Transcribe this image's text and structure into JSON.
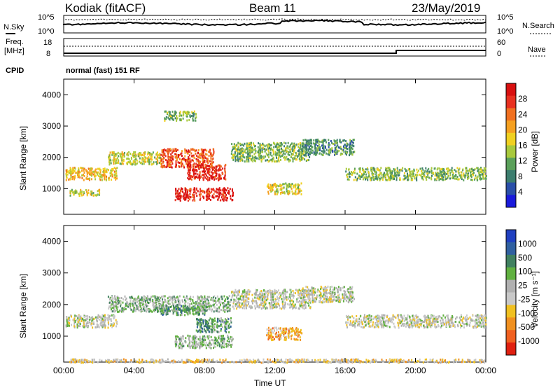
{
  "header": {
    "station": "Kodiak (fitACF)",
    "beam": "Beam 11",
    "date": "23/May/2019"
  },
  "top_panels": {
    "nsky_label": "N.Sky",
    "nsearch_label": "N.Search",
    "nsky_ticks": [
      "10^5",
      "10^0"
    ],
    "nsearch_ticks": [
      "10^5",
      "10^0"
    ],
    "freq_label_1": "Freq.",
    "freq_label_2": "[MHz]",
    "freq_ticks": [
      "18",
      "8"
    ],
    "nave_label": "Nave",
    "nave_ticks": [
      "60",
      "0"
    ],
    "cpid_label": "CPID",
    "cpid_text": "normal (fast) 151 RF"
  },
  "colors": {
    "power_scale": [
      "#1a1adb",
      "#2a4fa8",
      "#3c7d6e",
      "#5aa05a",
      "#a8c93c",
      "#f0d020",
      "#f5a020",
      "#f07020",
      "#e83020",
      "#d81010"
    ],
    "velocity_scale": [
      "#2040c0",
      "#3060a0",
      "#408060",
      "#60b040",
      "#b0b0b0",
      "#c8c8c8",
      "#f0c020",
      "#f09020",
      "#f06020",
      "#e02010"
    ]
  },
  "chart_data": [
    {
      "type": "heatmap",
      "name": "power",
      "xlabel": "",
      "ylabel": "Slant Range [km]",
      "xlim": [
        0,
        24
      ],
      "ylim": [
        180,
        4500
      ],
      "y_ticks": [
        "4000",
        "3000",
        "2000",
        "1000"
      ],
      "colorbar_label": "Power [dB]",
      "colorbar_ticks": [
        "28",
        "24",
        "20",
        "16",
        "12",
        "8",
        "4"
      ],
      "regions": [
        {
          "t0": 0.1,
          "t1": 3.0,
          "r0": 1300,
          "r1": 1700,
          "level": 6
        },
        {
          "t0": 2.5,
          "t1": 5.5,
          "r0": 1800,
          "r1": 2200,
          "level": 5
        },
        {
          "t0": 5.5,
          "t1": 8.5,
          "r0": 1700,
          "r1": 2300,
          "level": 8
        },
        {
          "t0": 7.0,
          "t1": 9.2,
          "r0": 1300,
          "r1": 1800,
          "level": 9
        },
        {
          "t0": 6.3,
          "t1": 9.6,
          "r0": 650,
          "r1": 1050,
          "level": 9
        },
        {
          "t0": 9.5,
          "t1": 14.0,
          "r0": 1900,
          "r1": 2500,
          "level": 4
        },
        {
          "t0": 11.5,
          "t1": 13.5,
          "r0": 850,
          "r1": 1200,
          "level": 5
        },
        {
          "t0": 13.5,
          "t1": 16.5,
          "r0": 2100,
          "r1": 2600,
          "level": 3
        },
        {
          "t0": 16.0,
          "t1": 24.0,
          "r0": 1300,
          "r1": 1700,
          "level": 4
        },
        {
          "t0": 0.3,
          "t1": 2.0,
          "r0": 800,
          "r1": 1000,
          "level": 5
        },
        {
          "t0": 5.7,
          "t1": 7.5,
          "r0": 3200,
          "r1": 3500,
          "level": 4
        }
      ]
    },
    {
      "type": "heatmap",
      "name": "velocity",
      "xlabel": "Time UT",
      "ylabel": "Slant Range [km]",
      "xlim": [
        0,
        24
      ],
      "ylim": [
        180,
        4500
      ],
      "x_ticks": [
        "00:00",
        "04:00",
        "08:00",
        "12:00",
        "16:00",
        "20:00",
        "00:00"
      ],
      "y_ticks": [
        "4000",
        "3000",
        "2000",
        "1000"
      ],
      "colorbar_label": "Velocity [m s⁻¹]",
      "colorbar_ticks": [
        "1000",
        "500",
        "100",
        "25",
        "-25",
        "-100",
        "-500",
        "-1000"
      ],
      "regions": [
        {
          "t0": 0.1,
          "t1": 3.0,
          "r0": 1300,
          "r1": 1700,
          "level": 5
        },
        {
          "t0": 2.5,
          "t1": 9.5,
          "r0": 1800,
          "r1": 2300,
          "level": 4
        },
        {
          "t0": 6.3,
          "t1": 9.6,
          "r0": 650,
          "r1": 1050,
          "level": 4
        },
        {
          "t0": 7.5,
          "t1": 9.5,
          "r0": 1150,
          "r1": 1600,
          "level": 3
        },
        {
          "t0": 5.5,
          "t1": 8.0,
          "r0": 1700,
          "r1": 2000,
          "level": 3
        },
        {
          "t0": 11.5,
          "t1": 13.5,
          "r0": 900,
          "r1": 1300,
          "level": 7
        },
        {
          "t0": 9.5,
          "t1": 14.0,
          "r0": 1900,
          "r1": 2500,
          "level": 5
        },
        {
          "t0": 13.5,
          "t1": 16.5,
          "r0": 2100,
          "r1": 2600,
          "level": 5
        },
        {
          "t0": 16.0,
          "t1": 24.0,
          "r0": 1300,
          "r1": 1700,
          "level": 5
        },
        {
          "t0": 0.3,
          "t1": 24.0,
          "r0": 190,
          "r1": 300,
          "level": 6
        }
      ]
    }
  ]
}
